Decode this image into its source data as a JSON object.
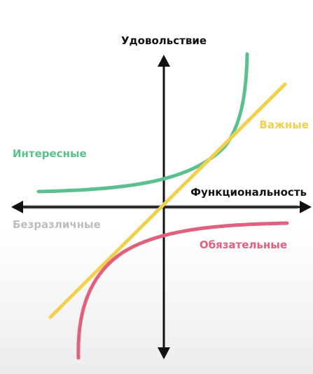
{
  "chart_data": {
    "type": "diagram",
    "y_axis_label": "Удовольствие",
    "x_axis_label": "Функциональность",
    "curves": [
      {
        "name": "Интересные",
        "color": "#5cc08e"
      },
      {
        "name": "Важные",
        "color": "#f2d04b"
      },
      {
        "name": "Безразличные",
        "color": "#bdbdbd"
      },
      {
        "name": "Обязательные",
        "color": "#e0607e"
      }
    ]
  }
}
